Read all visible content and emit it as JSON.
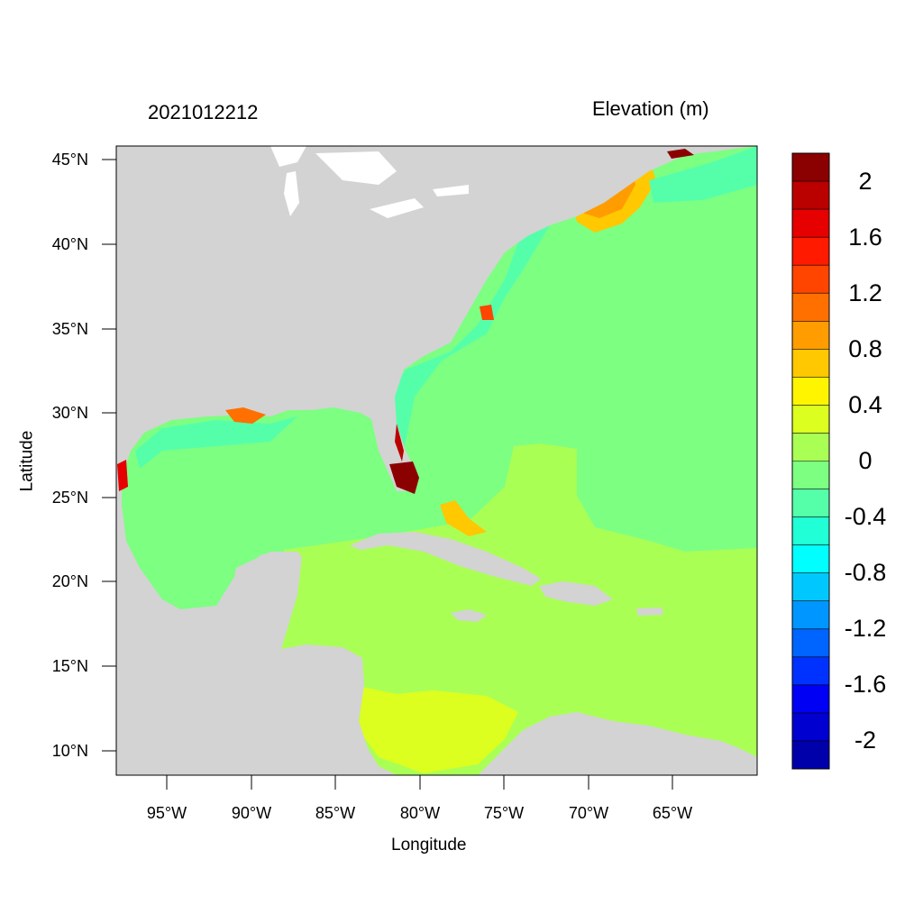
{
  "timestamp": "2021012212",
  "title": "Elevation (m)",
  "xlabel": "Longitude",
  "ylabel": "Latitude",
  "y_ticks": [
    "45°N",
    "40°N",
    "35°N",
    "30°N",
    "25°N",
    "20°N",
    "15°N",
    "10°N"
  ],
  "x_ticks": [
    "95°W",
    "90°W",
    "85°W",
    "80°W",
    "75°W",
    "70°W",
    "65°W"
  ],
  "colorbar": {
    "labels": [
      "2",
      "1.6",
      "1.2",
      "0.8",
      "0.4",
      "0",
      "-0.4",
      "-0.8",
      "-1.2",
      "-1.6",
      "-2"
    ],
    "colors": [
      "#8b0000",
      "#bb0000",
      "#e60000",
      "#ff1a00",
      "#ff4500",
      "#ff7000",
      "#ff9c00",
      "#ffc800",
      "#fff500",
      "#dcff20",
      "#aaff55",
      "#7dff82",
      "#55ffaa",
      "#20ffd5",
      "#00ffff",
      "#00c8ff",
      "#0096ff",
      "#0064ff",
      "#0032ff",
      "#0000f5",
      "#0000d0",
      "#0000aa"
    ]
  },
  "colors": {
    "land": "#d3d3d3",
    "ocean": "#7dff82",
    "caribbean": "#aaff55"
  }
}
